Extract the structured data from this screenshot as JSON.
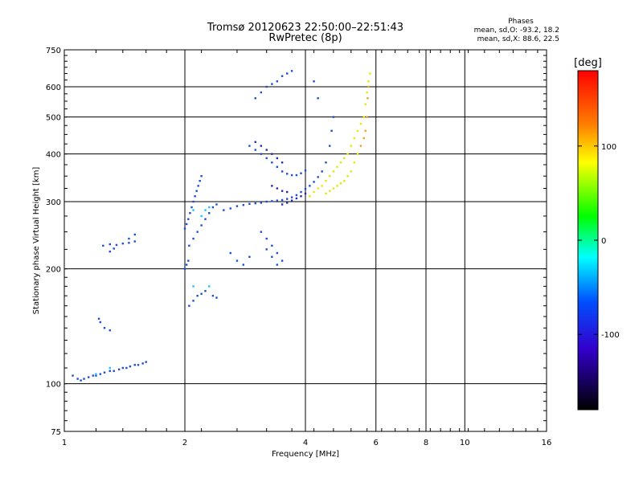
{
  "chart_data": {
    "type": "scatter",
    "title": "Tromsø 20120623 22:50:00–22:51:43",
    "subtitle": "RwPretec (8p)",
    "xlabel": "Frequency [MHz]",
    "ylabel": "Stationary phase Virtual Height [km]",
    "x_scale": "log2",
    "y_scale": "log",
    "xlim": [
      1,
      16
    ],
    "ylim": [
      75,
      750
    ],
    "x_ticks": [
      1,
      2,
      4,
      6,
      8,
      10,
      16
    ],
    "y_ticks": [
      75,
      100,
      200,
      300,
      400,
      500,
      600,
      750
    ],
    "grid": true,
    "phase_box": {
      "title": "Phases",
      "line1": "mean, sd,O:  -93.2, 18.2",
      "line2": "mean, sd,X:  88.6, 22.5"
    },
    "colorbar": {
      "label": "[deg]",
      "range": [
        -180,
        180
      ],
      "ticks": [
        100,
        0,
        -100
      ],
      "colors": [
        "#ff0000",
        "#ff8000",
        "#ffff00",
        "#00ff00",
        "#00ffff",
        "#0040ff",
        "#3300cc",
        "#000000"
      ]
    },
    "series": [
      {
        "type": "scatter",
        "color": "#1a4fd6",
        "values": [
          [
            1.05,
            105
          ],
          [
            1.08,
            103
          ],
          [
            1.1,
            102
          ],
          [
            1.12,
            103
          ],
          [
            1.15,
            104
          ],
          [
            1.18,
            105
          ],
          [
            1.2,
            105
          ],
          [
            1.23,
            106
          ],
          [
            1.26,
            107
          ],
          [
            1.3,
            108
          ],
          [
            1.33,
            108
          ],
          [
            1.37,
            109
          ],
          [
            1.4,
            110
          ],
          [
            1.43,
            110
          ],
          [
            1.46,
            111
          ],
          [
            1.5,
            112
          ],
          [
            1.53,
            112
          ],
          [
            1.57,
            113
          ],
          [
            1.6,
            114
          ],
          [
            1.25,
            230
          ],
          [
            1.3,
            232
          ],
          [
            1.35,
            231
          ],
          [
            1.4,
            233
          ],
          [
            1.45,
            234
          ],
          [
            1.5,
            236
          ],
          [
            1.3,
            222
          ],
          [
            1.33,
            226
          ],
          [
            1.45,
            240
          ],
          [
            1.5,
            246
          ],
          [
            1.22,
            148
          ],
          [
            1.23,
            145
          ],
          [
            1.26,
            140
          ],
          [
            1.3,
            138
          ],
          [
            2.0,
            255
          ],
          [
            2.02,
            262
          ],
          [
            2.04,
            270
          ],
          [
            2.06,
            280
          ],
          [
            2.08,
            290
          ],
          [
            2.1,
            300
          ],
          [
            2.12,
            310
          ],
          [
            2.14,
            320
          ],
          [
            2.16,
            330
          ],
          [
            2.18,
            340
          ],
          [
            2.2,
            350
          ],
          [
            2.05,
            230
          ],
          [
            2.1,
            240
          ],
          [
            2.15,
            250
          ],
          [
            2.2,
            260
          ],
          [
            2.25,
            270
          ],
          [
            2.3,
            280
          ],
          [
            2.35,
            290
          ],
          [
            2.4,
            295
          ],
          [
            2.05,
            160
          ],
          [
            2.1,
            165
          ],
          [
            2.15,
            170
          ],
          [
            2.2,
            172
          ],
          [
            2.25,
            175
          ],
          [
            2.0,
            200
          ],
          [
            2.02,
            205
          ],
          [
            2.04,
            210
          ],
          [
            2.35,
            170
          ],
          [
            2.4,
            168
          ],
          [
            2.5,
            285
          ],
          [
            2.6,
            288
          ],
          [
            2.7,
            292
          ],
          [
            2.8,
            294
          ],
          [
            2.9,
            296
          ],
          [
            3.0,
            297
          ],
          [
            3.1,
            298
          ],
          [
            3.2,
            300
          ],
          [
            3.3,
            301
          ],
          [
            3.4,
            302
          ],
          [
            3.5,
            303
          ],
          [
            3.6,
            305
          ],
          [
            3.7,
            308
          ],
          [
            3.8,
            312
          ],
          [
            3.9,
            318
          ],
          [
            4.0,
            324
          ],
          [
            4.1,
            330
          ],
          [
            4.2,
            338
          ],
          [
            4.3,
            348
          ],
          [
            4.4,
            360
          ],
          [
            4.5,
            380
          ],
          [
            4.6,
            420
          ],
          [
            4.65,
            460
          ],
          [
            4.7,
            500
          ],
          [
            2.9,
            420
          ],
          [
            3.0,
            410
          ],
          [
            3.1,
            400
          ],
          [
            3.2,
            390
          ],
          [
            3.3,
            380
          ],
          [
            3.4,
            370
          ],
          [
            3.5,
            360
          ],
          [
            3.6,
            355
          ],
          [
            3.7,
            352
          ],
          [
            3.8,
            352
          ],
          [
            3.9,
            356
          ],
          [
            4.0,
            362
          ],
          [
            3.2,
            600
          ],
          [
            3.3,
            610
          ],
          [
            3.4,
            620
          ],
          [
            3.5,
            640
          ],
          [
            3.6,
            650
          ],
          [
            3.7,
            660
          ],
          [
            3.1,
            580
          ],
          [
            3.0,
            560
          ],
          [
            4.2,
            620
          ],
          [
            4.3,
            560
          ],
          [
            3.1,
            250
          ],
          [
            3.2,
            240
          ],
          [
            3.3,
            230
          ],
          [
            3.4,
            220
          ],
          [
            3.5,
            210
          ],
          [
            3.2,
            225
          ],
          [
            3.3,
            215
          ],
          [
            3.4,
            205
          ],
          [
            2.6,
            220
          ],
          [
            2.7,
            210
          ],
          [
            2.8,
            205
          ],
          [
            2.9,
            215
          ]
        ]
      },
      {
        "type": "scatter",
        "color": "#2c2aa8",
        "values": [
          [
            3.5,
            295
          ],
          [
            3.6,
            298
          ],
          [
            3.7,
            302
          ],
          [
            3.8,
            306
          ],
          [
            3.9,
            310
          ],
          [
            4.0,
            315
          ],
          [
            3.3,
            330
          ],
          [
            3.4,
            325
          ],
          [
            3.5,
            320
          ],
          [
            3.6,
            318
          ],
          [
            3.0,
            430
          ],
          [
            3.1,
            420
          ],
          [
            3.2,
            410
          ],
          [
            3.3,
            400
          ],
          [
            3.4,
            390
          ],
          [
            3.5,
            380
          ]
        ]
      },
      {
        "type": "scatter",
        "color": "#e6e60a",
        "values": [
          [
            4.1,
            310
          ],
          [
            4.2,
            318
          ],
          [
            4.3,
            325
          ],
          [
            4.4,
            330
          ],
          [
            4.5,
            340
          ],
          [
            4.6,
            350
          ],
          [
            4.7,
            360
          ],
          [
            4.8,
            370
          ],
          [
            4.9,
            380
          ],
          [
            5.0,
            390
          ],
          [
            5.1,
            400
          ],
          [
            5.2,
            420
          ],
          [
            5.3,
            440
          ],
          [
            5.4,
            460
          ],
          [
            5.5,
            480
          ],
          [
            5.6,
            500
          ],
          [
            5.65,
            540
          ],
          [
            5.7,
            580
          ],
          [
            5.75,
            620
          ],
          [
            5.8,
            650
          ],
          [
            4.5,
            315
          ],
          [
            4.6,
            320
          ],
          [
            4.7,
            325
          ],
          [
            4.8,
            330
          ],
          [
            4.9,
            335
          ],
          [
            5.0,
            340
          ],
          [
            5.1,
            350
          ],
          [
            5.2,
            360
          ],
          [
            5.3,
            380
          ],
          [
            5.4,
            400
          ]
        ]
      },
      {
        "type": "scatter",
        "color": "#f0a020",
        "values": [
          [
            5.5,
            420
          ],
          [
            5.6,
            440
          ],
          [
            5.65,
            460
          ],
          [
            5.7,
            500
          ],
          [
            5.72,
            560
          ],
          [
            5.75,
            600
          ]
        ]
      },
      {
        "type": "scatter",
        "color": "#20c0ff",
        "values": [
          [
            2.2,
            275
          ],
          [
            2.25,
            285
          ],
          [
            2.3,
            290
          ],
          [
            2.1,
            285
          ],
          [
            1.3,
            110
          ],
          [
            1.2,
            106
          ],
          [
            2.3,
            180
          ],
          [
            2.1,
            180
          ]
        ]
      }
    ]
  }
}
